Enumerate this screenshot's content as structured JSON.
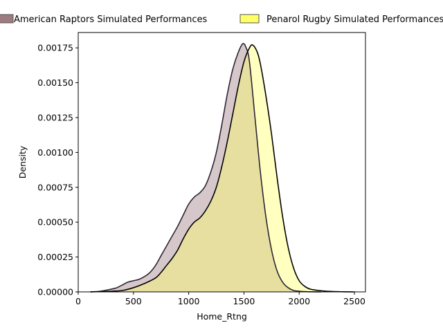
{
  "chart_data": {
    "type": "area",
    "xlabel": "Home_Rtng",
    "ylabel": "Density",
    "xlim": [
      0,
      2600
    ],
    "ylim": [
      0,
      0.00186
    ],
    "xticks": [
      0,
      500,
      1000,
      1500,
      2000,
      2500
    ],
    "yticks": [
      0.0,
      0.00025,
      0.0005,
      0.00075,
      0.001,
      0.00125,
      0.0015,
      0.00175
    ],
    "xtick_labels": [
      "0",
      "500",
      "1000",
      "1500",
      "2000",
      "2500"
    ],
    "ytick_labels": [
      "0.00000",
      "0.00025",
      "0.00050",
      "0.00075",
      "0.00100",
      "0.00125",
      "0.00150",
      "0.00175"
    ],
    "grid": false,
    "legend_position": "top",
    "series": [
      {
        "name": "American Raptors Simulated Performances",
        "color": "#9e7b80",
        "fill_color": "#d6c3c6",
        "edge_color": "#2b2433",
        "x": [
          110,
          200,
          300,
          350,
          400,
          450,
          500,
          550,
          600,
          650,
          700,
          750,
          800,
          850,
          900,
          950,
          1000,
          1050,
          1100,
          1150,
          1200,
          1250,
          1300,
          1350,
          1400,
          1450,
          1490,
          1520,
          1550,
          1600,
          1650,
          1700,
          1750,
          1800,
          1850,
          1900,
          1950,
          2000,
          2050,
          2100,
          2200
        ],
        "y": [
          0.0,
          5e-06,
          2e-05,
          3e-05,
          5e-05,
          7e-05,
          8e-05,
          9e-05,
          0.00011,
          0.00014,
          0.00019,
          0.00026,
          0.00033,
          0.0004,
          0.00047,
          0.00055,
          0.00063,
          0.00068,
          0.00071,
          0.00076,
          0.00086,
          0.001,
          0.0012,
          0.00142,
          0.0016,
          0.00172,
          0.00178,
          0.00175,
          0.00165,
          0.00125,
          0.00085,
          0.00053,
          0.0003,
          0.00015,
          7e-05,
          3e-05,
          1e-05,
          5e-06,
          2e-06,
          1e-06,
          0.0
        ]
      },
      {
        "name": "Penarol Rugby Simulated Performances",
        "color": "#ffff66",
        "fill_color": "#ffffc0",
        "edge_color": "#000000",
        "x": [
          110,
          200,
          300,
          400,
          500,
          600,
          700,
          750,
          800,
          850,
          900,
          950,
          1000,
          1050,
          1100,
          1150,
          1200,
          1250,
          1300,
          1350,
          1400,
          1450,
          1500,
          1550,
          1580,
          1620,
          1650,
          1700,
          1750,
          1800,
          1850,
          1900,
          1950,
          2000,
          2050,
          2100,
          2200,
          2300,
          2400,
          2500
        ],
        "y": [
          0.0,
          2e-06,
          5e-06,
          1e-05,
          3e-05,
          6e-05,
          0.0001,
          0.00014,
          0.00019,
          0.00024,
          0.0003,
          0.00038,
          0.00045,
          0.0005,
          0.00053,
          0.00058,
          0.00065,
          0.00075,
          0.0009,
          0.00108,
          0.00128,
          0.00148,
          0.00165,
          0.00175,
          0.00177,
          0.00172,
          0.00163,
          0.0014,
          0.00113,
          0.00082,
          0.00054,
          0.00032,
          0.00017,
          8e-05,
          4e-05,
          2e-05,
          8e-06,
          3e-06,
          1e-06,
          0.0
        ]
      }
    ]
  }
}
